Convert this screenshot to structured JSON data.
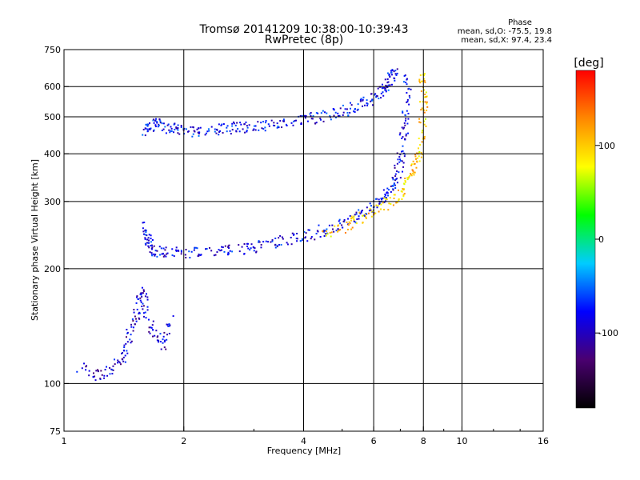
{
  "chart_data": {
    "type": "scatter",
    "title": "Tromsø 20141209 10:38:00-10:39:43",
    "subtitle": "RwPretec (8p)",
    "xlabel": "Frequency [MHz]",
    "ylabel": "Stationary phase Virtual Height [km]",
    "x_scale": "log",
    "y_scale": "log",
    "xlim": [
      1,
      16
    ],
    "ylim": [
      75,
      750
    ],
    "x_ticks": [
      1,
      2,
      4,
      6,
      8,
      10,
      16
    ],
    "y_ticks": [
      75,
      100,
      200,
      300,
      400,
      500,
      600,
      750
    ],
    "grid": true,
    "stats": {
      "heading": "Phase",
      "line_o": "mean, sd,O: -75.5, 19.8",
      "line_x": "mean, sd,X:  97.4, 23.4"
    },
    "colorbar": {
      "label": "[deg]",
      "ticks": [
        "100",
        "0",
        "-100"
      ],
      "range": [
        -180,
        180
      ],
      "colormap": [
        "#000000",
        "#4a0070",
        "#0000ff",
        "#00ccff",
        "#00ff00",
        "#ffff00",
        "#ff8800",
        "#ff0000"
      ]
    },
    "series": [
      {
        "values_description_only": "",
        "trace": "o-upper",
        "points": [
          [
            1.6,
            460
          ],
          [
            1.65,
            470
          ],
          [
            1.7,
            480
          ],
          [
            1.8,
            470
          ],
          [
            1.9,
            465
          ],
          [
            2.0,
            460
          ],
          [
            2.2,
            455
          ],
          [
            2.4,
            460
          ],
          [
            2.6,
            465
          ],
          [
            2.8,
            470
          ],
          [
            3.0,
            470
          ],
          [
            3.3,
            475
          ],
          [
            3.6,
            480
          ],
          [
            4.0,
            490
          ],
          [
            4.4,
            500
          ],
          [
            4.8,
            510
          ],
          [
            5.2,
            520
          ],
          [
            5.6,
            540
          ],
          [
            6.0,
            560
          ],
          [
            6.3,
            580
          ],
          [
            6.5,
            610
          ],
          [
            6.7,
            640
          ],
          [
            6.8,
            650
          ]
        ],
        "phase": -80
      },
      {
        "trace": "o-lower",
        "points": [
          [
            1.6,
            260
          ],
          [
            1.62,
            240
          ],
          [
            1.65,
            228
          ],
          [
            1.7,
            222
          ],
          [
            1.8,
            220
          ],
          [
            2.0,
            220
          ],
          [
            2.2,
            221
          ],
          [
            2.5,
            223
          ],
          [
            2.8,
            225
          ],
          [
            3.0,
            228
          ],
          [
            3.3,
            232
          ],
          [
            3.6,
            237
          ],
          [
            4.0,
            243
          ],
          [
            4.4,
            250
          ],
          [
            4.8,
            258
          ],
          [
            5.2,
            267
          ],
          [
            5.6,
            277
          ],
          [
            6.0,
            290
          ],
          [
            6.3,
            303
          ],
          [
            6.6,
            320
          ],
          [
            6.8,
            345
          ],
          [
            7.0,
            380
          ],
          [
            7.1,
            420
          ],
          [
            7.2,
            480
          ],
          [
            7.25,
            560
          ],
          [
            7.3,
            640
          ]
        ],
        "phase": -85
      },
      {
        "trace": "x-lower",
        "points": [
          [
            4.5,
            245
          ],
          [
            5.0,
            255
          ],
          [
            5.5,
            268
          ],
          [
            6.0,
            282
          ],
          [
            6.5,
            297
          ],
          [
            7.0,
            315
          ],
          [
            7.3,
            340
          ],
          [
            7.6,
            370
          ],
          [
            7.8,
            400
          ],
          [
            7.9,
            450
          ],
          [
            8.0,
            520
          ],
          [
            8.0,
            600
          ],
          [
            8.0,
            650
          ]
        ],
        "phase": 100
      },
      {
        "trace": "e-region",
        "points": [
          [
            1.1,
            110
          ],
          [
            1.2,
            105
          ],
          [
            1.3,
            108
          ],
          [
            1.4,
            115
          ],
          [
            1.45,
            130
          ],
          [
            1.5,
            145
          ],
          [
            1.55,
            160
          ],
          [
            1.58,
            175
          ],
          [
            1.6,
            150
          ],
          [
            1.7,
            135
          ],
          [
            1.8,
            125
          ],
          [
            1.85,
            150
          ]
        ],
        "phase": -95
      }
    ]
  }
}
